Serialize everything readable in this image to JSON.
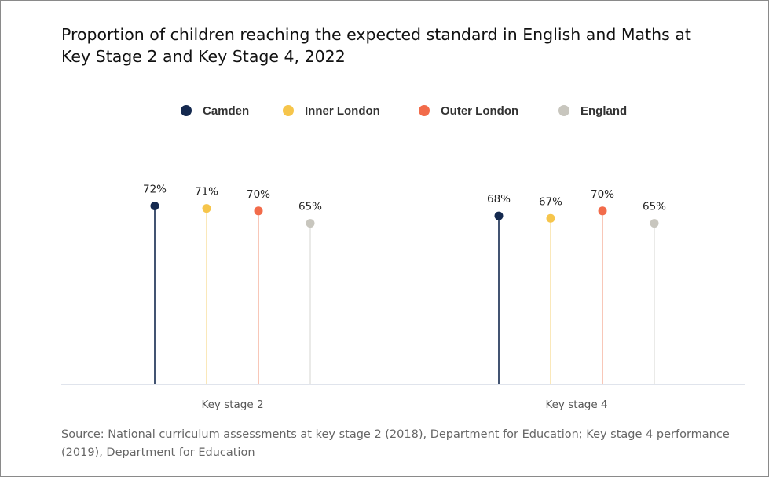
{
  "chart_data": {
    "type": "lollipop",
    "title": "Proportion of children reaching the expected standard in English and Maths at Key Stage 2 and Key Stage 4, 2022",
    "categories": [
      "Key stage 2",
      "Key stage 4"
    ],
    "series": [
      {
        "name": "Camden",
        "color": "#14294f",
        "stem_color": "#14294f",
        "values": [
          72,
          68
        ],
        "labels": [
          "72%",
          "68%"
        ]
      },
      {
        "name": "Inner London",
        "color": "#f6c54b",
        "stem_color": "#f8e3a8",
        "values": [
          71,
          67
        ],
        "labels": [
          "71%",
          "67%"
        ]
      },
      {
        "name": "Outer London",
        "color": "#f26b4a",
        "stem_color": "#f7b9a6",
        "values": [
          70,
          70
        ],
        "labels": [
          "70%",
          "70%"
        ]
      },
      {
        "name": "England",
        "color": "#c8c6be",
        "stem_color": "#e4e4e2",
        "values": [
          65,
          65
        ],
        "labels": [
          "65%",
          "65%"
        ]
      }
    ],
    "ylim": [
      0,
      100
    ],
    "legend_position": "top",
    "grid": false,
    "source": "Source: National curriculum assessments at key stage 2 (2018), Department for Education; Key stage 4 performance (2019), Department for Education"
  }
}
